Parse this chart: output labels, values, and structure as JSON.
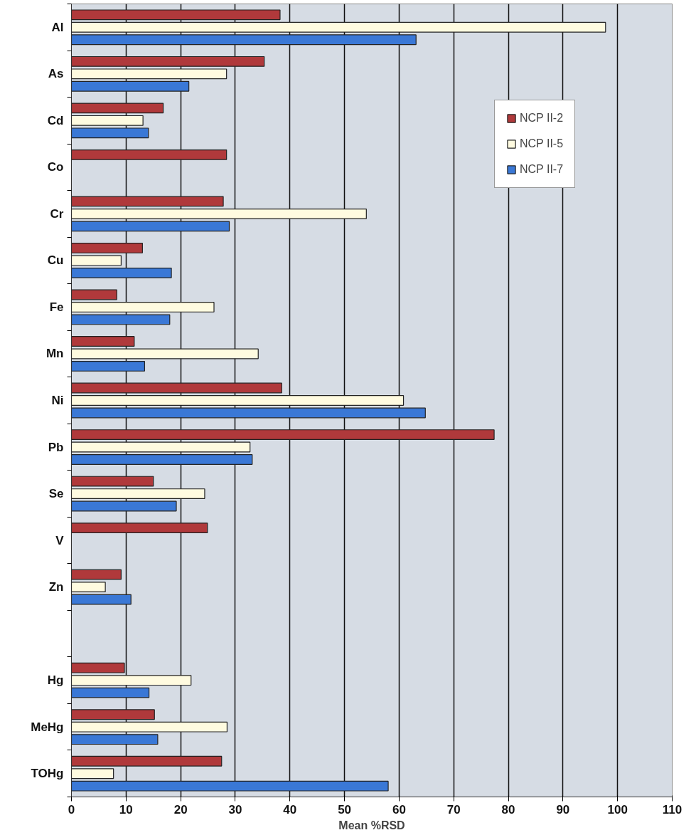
{
  "chart_data": {
    "type": "bar",
    "orientation": "horizontal",
    "xlabel": "Mean %RSD",
    "categories": [
      "Al",
      "As",
      "Cd",
      "Co",
      "Cr",
      "Cu",
      "Fe",
      "Mn",
      "Ni",
      "Pb",
      "Se",
      "V",
      "Zn",
      null,
      "Hg",
      "MeHg",
      "TOHg"
    ],
    "series": [
      {
        "name": "NCP II-2",
        "color": "#b0393b",
        "values": [
          38.2,
          35.3,
          16.8,
          28.4,
          27.8,
          13.0,
          8.3,
          11.5,
          38.5,
          77.4,
          15.0,
          24.9,
          9.1,
          null,
          9.7,
          15.2,
          27.5
        ]
      },
      {
        "name": "NCP II-5",
        "color": "#fffbe0",
        "values": [
          97.8,
          28.4,
          13.1,
          null,
          54.0,
          9.1,
          26.1,
          34.2,
          60.8,
          32.7,
          24.4,
          null,
          6.2,
          null,
          21.9,
          28.5,
          7.7
        ]
      },
      {
        "name": "NCP II-7",
        "color": "#3a78d6",
        "values": [
          63.1,
          21.5,
          14.1,
          null,
          28.9,
          18.3,
          18.0,
          13.4,
          64.8,
          33.1,
          19.2,
          null,
          10.9,
          null,
          14.2,
          15.8,
          58.0
        ]
      }
    ],
    "xlim": [
      0,
      110
    ],
    "xticks": [
      0,
      10,
      20,
      30,
      40,
      50,
      60,
      70,
      80,
      90,
      100,
      110
    ],
    "grid": "x",
    "legend": "top right"
  }
}
